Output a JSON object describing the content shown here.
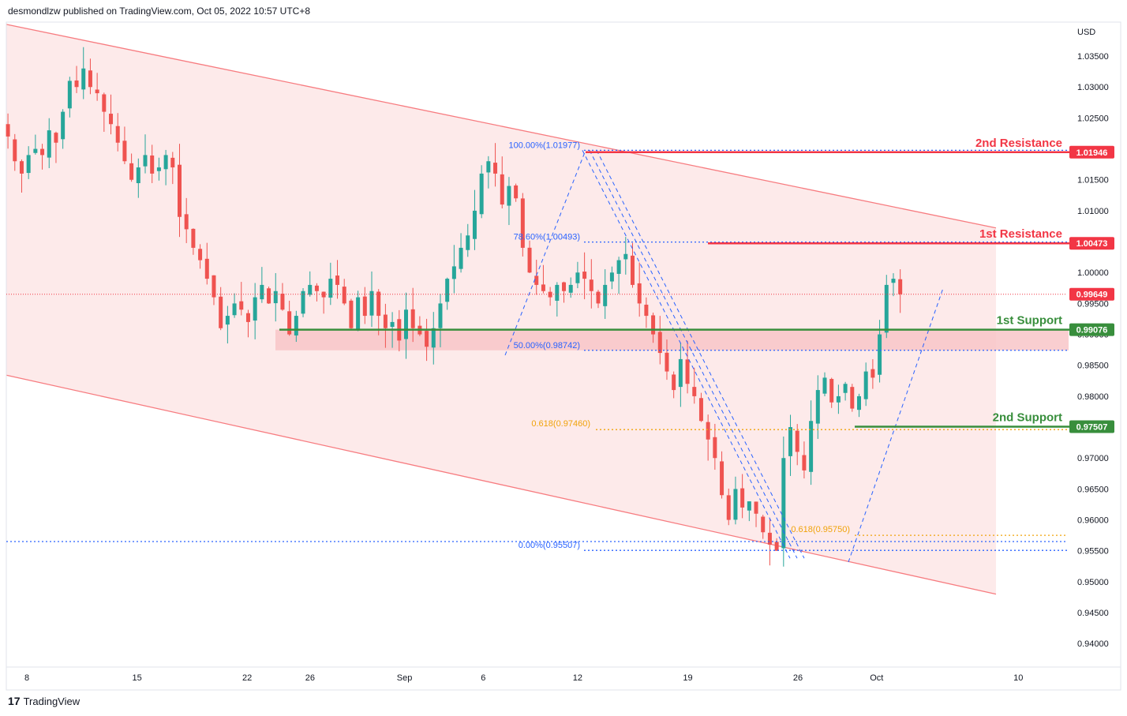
{
  "header": {
    "text": "desmondlzw published on TradingView.com, Oct 05, 2022 10:57 UTC+8"
  },
  "footer": {
    "brand": "TradingView",
    "logo_glyph": "17"
  },
  "chart_data": {
    "type": "candlestick",
    "currency_label": "USD",
    "y_ticks": [
      1.035,
      1.03,
      1.025,
      1.02,
      1.015,
      1.01,
      1.005,
      1.0,
      0.995,
      0.99,
      0.985,
      0.98,
      0.975,
      0.97,
      0.965,
      0.96,
      0.955,
      0.95,
      0.945,
      0.94
    ],
    "y_tick_labels": [
      "1.03500",
      "1.03000",
      "1.02500",
      "1.02000",
      "1.01500",
      "1.01000",
      "1.00500",
      "1.00000",
      "0.99500",
      "0.99000",
      "0.98500",
      "0.98000",
      "0.97500",
      "0.97000",
      "0.96500",
      "0.96000",
      "0.95500",
      "0.95000",
      "0.94500",
      "0.94000"
    ],
    "ylim": [
      0.9362,
      1.0405
    ],
    "x_labels": [
      {
        "label": "8",
        "day": 0
      },
      {
        "label": "15",
        "day": 7
      },
      {
        "label": "22",
        "day": 14
      },
      {
        "label": "26",
        "day": 18
      },
      {
        "label": "Sep",
        "day": 24
      },
      {
        "label": "6",
        "day": 29
      },
      {
        "label": "12",
        "day": 35
      },
      {
        "label": "19",
        "day": 42
      },
      {
        "label": "26",
        "day": 49
      },
      {
        "label": "Oct",
        "day": 54
      },
      {
        "label": "10",
        "day": 63
      }
    ],
    "closes": [
      1.022,
      1.018,
      1.016,
      1.019,
      1.02,
      1.019,
      1.023,
      1.021,
      1.026,
      1.031,
      1.03,
      1.033,
      1.03,
      1.029,
      1.026,
      1.024,
      1.021,
      1.018,
      1.015,
      1.017,
      1.019,
      1.016,
      1.017,
      1.019,
      1.017,
      1.009,
      1.007,
      1.004,
      1.002,
      0.999,
      0.996,
      0.991,
      0.993,
      0.995,
      0.994,
      0.992,
      0.996,
      0.998,
      0.995,
      0.997,
      0.994,
      0.99,
      0.993,
      0.997,
      0.998,
      0.997,
      0.996,
      0.999,
      0.998,
      0.995,
      0.991,
      0.996,
      0.993,
      0.997,
      0.993,
      0.991,
      0.992,
      0.989,
      0.994,
      0.991,
      0.99,
      0.988,
      0.991,
      0.995,
      0.999,
      1.001,
      1.004,
      1.006,
      1.01,
      1.016,
      1.018,
      1.016,
      1.011,
      1.014,
      1.012,
      1.004,
      1.0,
      0.998,
      0.997,
      0.996,
      0.998,
      0.997,
      0.998,
      1.0,
      0.999,
      0.997,
      0.995,
      0.998,
      1.0,
      1.002,
      1.003,
      0.998,
      0.995,
      0.993,
      0.99,
      0.987,
      0.984,
      0.981,
      0.986,
      0.982,
      0.98,
      0.976,
      0.973,
      0.97,
      0.964,
      0.96,
      0.965,
      0.962,
      0.963,
      0.961,
      0.958,
      0.956,
      0.955,
      0.97,
      0.975,
      0.971,
      0.968,
      0.976,
      0.981,
      0.983,
      0.979,
      0.98,
      0.982,
      0.978,
      0.98,
      0.984,
      0.983,
      0.99,
      0.998,
      0.999,
      0.9965
    ],
    "levels": [
      {
        "name": "2nd Resistance",
        "value": 1.01946,
        "label": "1.01946",
        "color": "#f23645"
      },
      {
        "name": "1st Resistance",
        "value": 1.00473,
        "label": "1.00473",
        "color": "#f23645"
      },
      {
        "name": "1st Support",
        "value": 0.99076,
        "label": "0.99076",
        "color": "#388e3c"
      },
      {
        "name": "2nd Support",
        "value": 0.97507,
        "label": "0.97507",
        "color": "#388e3c"
      }
    ],
    "last_price": {
      "value": 0.99649,
      "label": "0.99649",
      "color": "#f23645"
    },
    "fib_retracement": [
      {
        "label": "100.00%(1.01977)",
        "value": 1.01977
      },
      {
        "label": "78.60%(1.00493)",
        "value": 1.00493
      },
      {
        "label": "50.00%(0.98742)",
        "value": 0.98742
      },
      {
        "label": "0.00%(0.95507)",
        "value": 0.95507
      }
    ],
    "fib_extensions": [
      {
        "label": "0.618(0.97460)",
        "value": 0.9746
      },
      {
        "label": "0.618(0.95750)",
        "value": 0.9575
      }
    ],
    "other_dotted_levels": [
      0.9565
    ],
    "channel": {
      "upper": [
        {
          "day": -2,
          "value": 1.0405
        },
        {
          "day": 66,
          "value": 1.0049
        }
      ],
      "lower": [
        {
          "day": -2,
          "value": 0.9838
        },
        {
          "day": 66,
          "value": 0.9455
        }
      ]
    },
    "colors": {
      "bull": "#26a69a",
      "bear": "#ef5350",
      "channel_fill": "#fdeaea",
      "channel_line": "#f77c80",
      "zone_fill": "#f8c6c8",
      "fib_line": "#2962ff",
      "fib_text": "#2962ff",
      "ext_line": "#f0a30a",
      "ext_text": "#f0a30a",
      "resistance": "#f23645",
      "support": "#388e3c"
    }
  }
}
